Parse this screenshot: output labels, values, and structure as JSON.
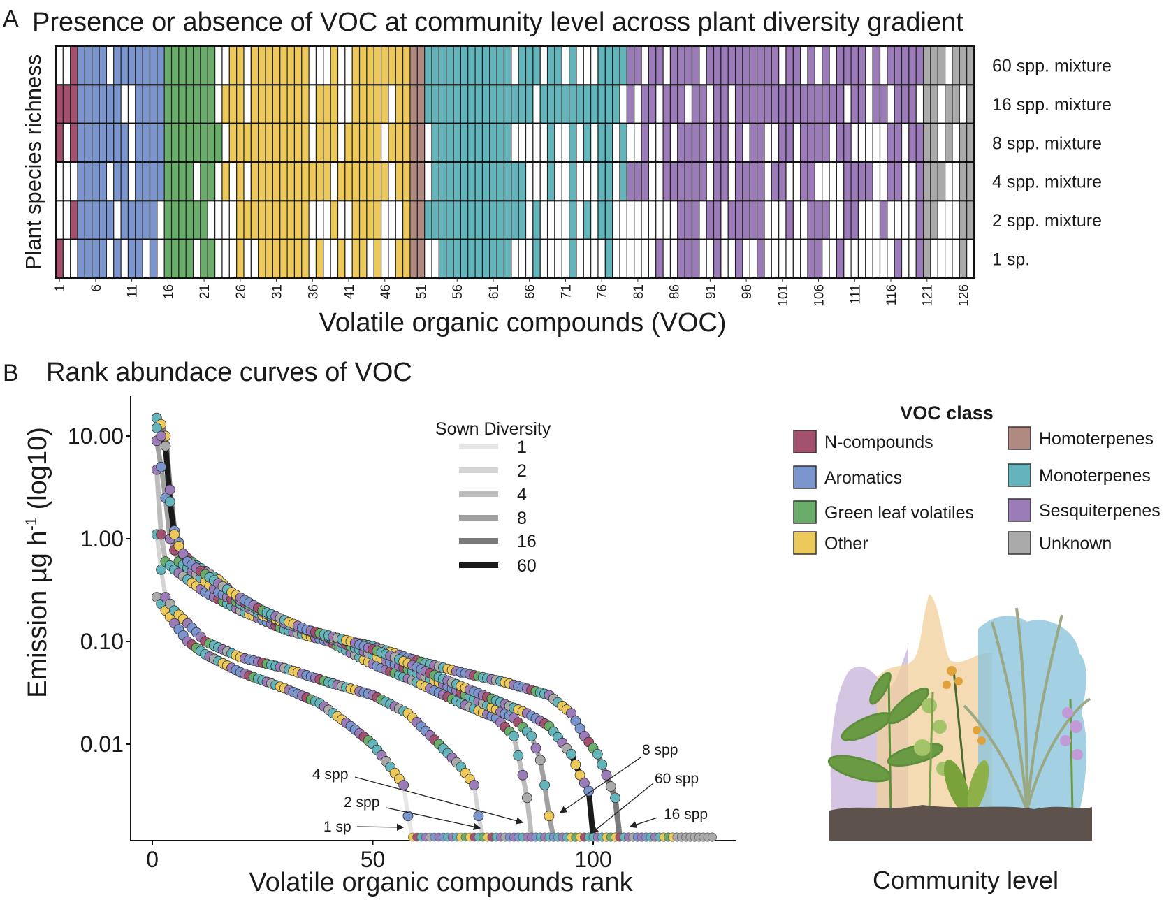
{
  "panel_a": {
    "letter": "A",
    "title": "Presence or absence of VOC at community level across plant diversity gradient",
    "ylabel": "Plant species richness",
    "xlabel": "Volatile organic compounds (VOC)",
    "tick_labels": [
      "1",
      "6",
      "11",
      "16",
      "21",
      "26",
      "31",
      "36",
      "41",
      "46",
      "51",
      "56",
      "61",
      "66",
      "71",
      "76",
      "81",
      "86",
      "91",
      "96",
      "101",
      "106",
      "111",
      "116",
      "121",
      "126"
    ]
  },
  "panel_b": {
    "letter": "B",
    "title": "Rank abundace curves of VOC",
    "legend_title": "Sown Diversity",
    "legend_items": [
      "1",
      "2",
      "4",
      "8",
      "16",
      "60"
    ],
    "annotations": [
      "1 sp",
      "2 spp",
      "4 spp",
      "8 spp",
      "16 spp",
      "60 spp"
    ]
  },
  "voc_legend": {
    "title": "VOC class",
    "items": [
      {
        "label": "N-compounds",
        "color": "#a4506f"
      },
      {
        "label": "Aromatics",
        "color": "#7b96cf"
      },
      {
        "label": "Green leaf volatiles",
        "color": "#6aac6a"
      },
      {
        "label": "Other",
        "color": "#ecc95a"
      },
      {
        "label": "Homoterpenes",
        "color": "#b08a80"
      },
      {
        "label": "Monoterpenes",
        "color": "#64b4bb"
      },
      {
        "label": "Sesquiterpenes",
        "color": "#9b7cb8"
      },
      {
        "label": "Unknown",
        "color": "#aaaaaa"
      }
    ]
  },
  "illustration": {
    "caption": "Community level"
  },
  "chart_data": [
    {
      "type": "heatmap",
      "title": "Presence or absence of VOC at community level across plant diversity gradient",
      "xlabel": "Volatile organic compounds (VOC)",
      "ylabel": "Plant species richness",
      "n_compounds": 127,
      "class_ranges": [
        {
          "class": "N-compounds",
          "from": 1,
          "to": 3
        },
        {
          "class": "Aromatics",
          "from": 4,
          "to": 15
        },
        {
          "class": "Green leaf volatiles",
          "from": 16,
          "to": 23
        },
        {
          "class": "Other",
          "from": 24,
          "to": 49
        },
        {
          "class": "Homoterpenes",
          "from": 50,
          "to": 51
        },
        {
          "class": "Monoterpenes",
          "from": 52,
          "to": 79
        },
        {
          "class": "Sesquiterpenes",
          "from": 80,
          "to": 120
        },
        {
          "class": "Unknown",
          "from": 121,
          "to": 127
        }
      ],
      "rows": [
        {
          "label": "60 spp. mixture",
          "presence": "0011111011111111111111001101111111100010011111111111111111111110111011010001111110110111101111111111011010101111010111111110111"
        },
        {
          "label": "16 spp. mixture",
          "presence": "1111111110011111111111011101111111101110011111011111111111111111110111111111110101101110110110111111111111111011011011101101101"
        },
        {
          "label": "8 spp. mixture",
          "presence": "1011111111011111111111101111111111101110111110111110111111111110000010010101101001001011110110101100110111101100000110111101011"
        },
        {
          "label": "4 spp. mixture",
          "presence": "0001111011011111111011010101111111111101111111011110111111111111100010010001101111001111110110111101100110000111100110011110011"
        },
        {
          "label": "2 spp. mixture",
          "presence": "0011111101111101111110000111111111100010011110001111111111111111101000010101100000000011101101111100010011100110001000011100011"
        },
        {
          "label": "1 sp.",
          "presence": "1001111010110101111011000100111111101001011010011110011111111110001000010000100000010011100100100100000011001000000010011000010"
        }
      ]
    },
    {
      "type": "line",
      "title": "Rank abundace curves of VOC",
      "xlabel": "Volatile organic compounds rank",
      "ylabel": "Emission µg h⁻¹ (log10)",
      "ylabel_main": "Emission µg h",
      "ylabel_sup": "-1",
      "ylabel_tail": " (log10)",
      "y_scale": "log10",
      "x_ticks": [
        "0",
        "50",
        "100"
      ],
      "y_ticks": [
        "10.00",
        "1.00",
        "0.10",
        "0.01"
      ],
      "xlim": [
        0,
        127
      ],
      "ylim": [
        0.00115,
        24
      ],
      "legend_title": "Sown Diversity",
      "legend_position": "top-center",
      "series": [
        {
          "name": "1",
          "color": "#e6e6e6",
          "end_rank": 59,
          "points": [
            [
              1,
              0.27
            ],
            [
              3,
              0.2
            ],
            [
              5,
              0.15
            ],
            [
              8,
              0.1
            ],
            [
              12,
              0.075
            ],
            [
              20,
              0.05
            ],
            [
              30,
              0.035
            ],
            [
              38,
              0.025
            ],
            [
              45,
              0.015
            ],
            [
              50,
              0.01
            ],
            [
              54,
              0.006
            ],
            [
              57,
              0.004
            ],
            [
              58,
              0.002
            ]
          ]
        },
        {
          "name": "2",
          "color": "#d4d4d4",
          "end_rank": 75,
          "points": [
            [
              1,
              1.1
            ],
            [
              2,
              0.5
            ],
            [
              3,
              0.27
            ],
            [
              5,
              0.2
            ],
            [
              8,
              0.15
            ],
            [
              12,
              0.1
            ],
            [
              20,
              0.07
            ],
            [
              30,
              0.055
            ],
            [
              40,
              0.04
            ],
            [
              50,
              0.03
            ],
            [
              58,
              0.02
            ],
            [
              65,
              0.01
            ],
            [
              70,
              0.006
            ],
            [
              73,
              0.004
            ],
            [
              74,
              0.002
            ]
          ]
        },
        {
          "name": "4",
          "color": "#bdbdbd",
          "end_rank": 86,
          "points": [
            [
              1,
              4.7
            ],
            [
              2,
              1.1
            ],
            [
              3,
              0.6
            ],
            [
              5,
              0.5
            ],
            [
              8,
              0.4
            ],
            [
              12,
              0.3
            ],
            [
              20,
              0.2
            ],
            [
              30,
              0.13
            ],
            [
              40,
              0.1
            ],
            [
              50,
              0.06
            ],
            [
              60,
              0.04
            ],
            [
              70,
              0.025
            ],
            [
              78,
              0.018
            ],
            [
              82,
              0.012
            ],
            [
              84,
              0.005
            ],
            [
              85,
              0.003
            ]
          ]
        },
        {
          "name": "8",
          "color": "#a0a0a0",
          "end_rank": 91,
          "points": [
            [
              1,
              9
            ],
            [
              2,
              5
            ],
            [
              3,
              2.5
            ],
            [
              4,
              1.0
            ],
            [
              6,
              0.6
            ],
            [
              10,
              0.45
            ],
            [
              15,
              0.3
            ],
            [
              25,
              0.18
            ],
            [
              35,
              0.13
            ],
            [
              45,
              0.09
            ],
            [
              55,
              0.06
            ],
            [
              65,
              0.04
            ],
            [
              75,
              0.025
            ],
            [
              82,
              0.018
            ],
            [
              86,
              0.012
            ],
            [
              88,
              0.007
            ],
            [
              89,
              0.004
            ],
            [
              90,
              0.002
            ]
          ]
        },
        {
          "name": "16",
          "color": "#7a7a7a",
          "end_rank": 106,
          "points": [
            [
              1,
              15
            ],
            [
              2,
              13
            ],
            [
              3,
              10
            ],
            [
              4,
              3
            ],
            [
              5,
              1.2
            ],
            [
              7,
              0.7
            ],
            [
              10,
              0.55
            ],
            [
              15,
              0.4
            ],
            [
              20,
              0.25
            ],
            [
              30,
              0.15
            ],
            [
              40,
              0.11
            ],
            [
              50,
              0.09
            ],
            [
              60,
              0.065
            ],
            [
              70,
              0.05
            ],
            [
              80,
              0.04
            ],
            [
              90,
              0.03
            ],
            [
              95,
              0.02
            ],
            [
              98,
              0.012
            ],
            [
              101,
              0.008
            ],
            [
              103,
              0.005
            ],
            [
              105,
              0.003
            ]
          ]
        },
        {
          "name": "60",
          "color": "#1a1a1a",
          "end_rank": 100,
          "points": [
            [
              1,
              12
            ],
            [
              2,
              10
            ],
            [
              3,
              8
            ],
            [
              4,
              2.3
            ],
            [
              5,
              1.1
            ],
            [
              6,
              0.85
            ],
            [
              8,
              0.6
            ],
            [
              12,
              0.45
            ],
            [
              18,
              0.3
            ],
            [
              25,
              0.2
            ],
            [
              35,
              0.13
            ],
            [
              45,
              0.1
            ],
            [
              55,
              0.07
            ],
            [
              65,
              0.045
            ],
            [
              75,
              0.03
            ],
            [
              85,
              0.02
            ],
            [
              90,
              0.015
            ],
            [
              95,
              0.008
            ],
            [
              97,
              0.005
            ],
            [
              99,
              0.0035
            ]
          ]
        }
      ]
    }
  ]
}
